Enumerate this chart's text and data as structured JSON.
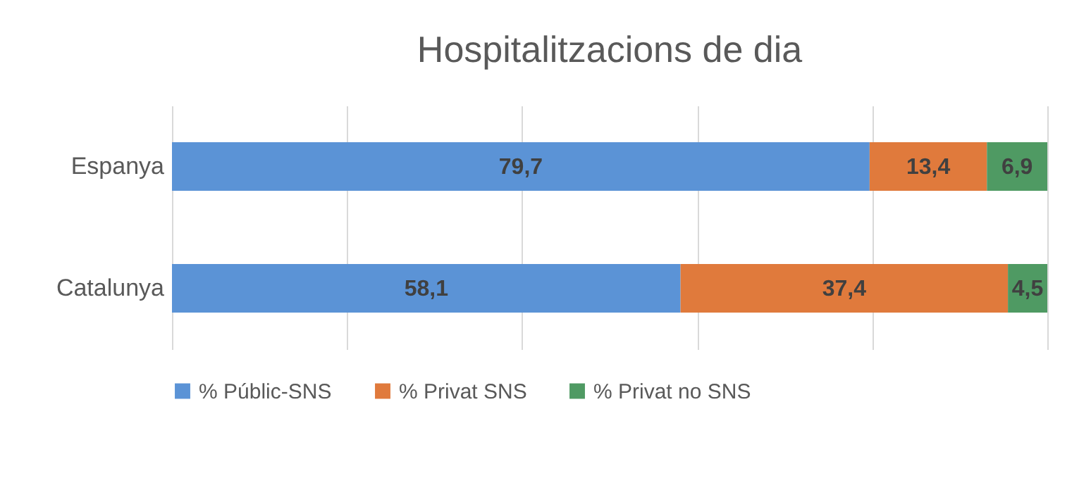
{
  "chart_data": {
    "type": "bar",
    "title": "Hospitalitzacions de dia",
    "orientation": "horizontal",
    "stacked": true,
    "categories": [
      "Espanya",
      "Catalunya"
    ],
    "series": [
      {
        "name": "% Públic-SNS",
        "color": "#5b93d6",
        "values": [
          79.7,
          58.1
        ],
        "value_labels": [
          "79,7",
          "58,1"
        ]
      },
      {
        "name": "% Privat SNS",
        "color": "#e07a3c",
        "values": [
          13.4,
          37.4
        ],
        "value_labels": [
          "13,4",
          "37,4"
        ]
      },
      {
        "name": "% Privat no SNS",
        "color": "#4f9a63",
        "values": [
          6.9,
          4.5
        ],
        "value_labels": [
          "6,9",
          "4,5"
        ]
      }
    ],
    "xlim": [
      0,
      100
    ],
    "xticks": [
      0,
      20,
      40,
      60,
      80,
      100
    ],
    "grid": "x",
    "tick_labels": "y",
    "legend": "bottom"
  }
}
